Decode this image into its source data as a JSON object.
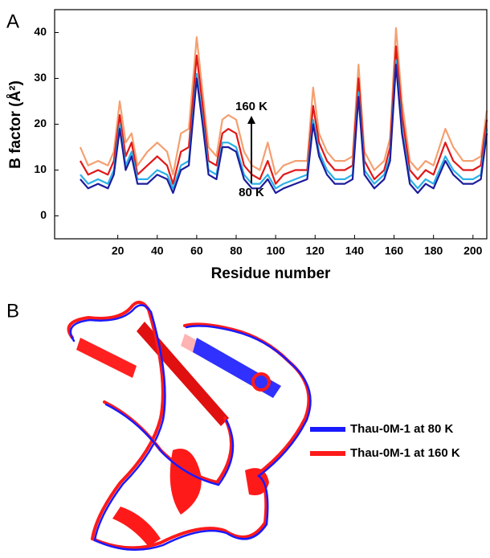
{
  "panel_a_label": "A",
  "panel_b_label": "B",
  "chart_data": {
    "type": "line",
    "ylabel": "B factor (Å²)",
    "xlabel": "Residue number",
    "annotations": [
      "160 K",
      "80 K"
    ],
    "x": [
      1,
      5,
      10,
      15,
      18,
      21,
      24,
      27,
      30,
      35,
      40,
      45,
      48,
      52,
      56,
      60,
      63,
      66,
      70,
      73,
      76,
      80,
      84,
      88,
      92,
      96,
      100,
      104,
      110,
      116,
      119,
      122,
      126,
      130,
      135,
      139,
      142,
      145,
      150,
      155,
      158,
      161,
      164,
      168,
      172,
      176,
      180,
      186,
      190,
      195,
      200,
      204,
      207
    ],
    "series": [
      {
        "color": "#f4a070",
        "values": [
          15,
          11,
          12,
          11,
          14,
          25,
          16,
          18,
          11,
          14,
          16,
          14,
          9,
          18,
          19,
          39,
          27,
          15,
          13,
          21,
          22,
          21,
          14,
          11,
          10,
          16,
          9,
          11,
          12,
          12,
          28,
          18,
          14,
          12,
          12,
          13,
          33,
          14,
          10,
          12,
          17,
          41,
          25,
          12,
          10,
          12,
          11,
          19,
          15,
          12,
          12,
          13,
          23
        ]
      },
      {
        "color": "#e01818",
        "values": [
          12,
          9,
          10,
          9,
          12,
          22,
          13,
          16,
          9,
          11,
          13,
          11,
          7,
          14,
          15,
          35,
          24,
          12,
          11,
          18,
          19,
          18,
          11,
          9,
          8,
          12,
          7,
          9,
          10,
          10,
          24,
          16,
          12,
          10,
          10,
          11,
          30,
          12,
          8,
          10,
          15,
          37,
          22,
          10,
          8,
          10,
          9,
          16,
          12,
          10,
          10,
          11,
          21
        ]
      },
      {
        "color": "#2ab0e8",
        "values": [
          9,
          7,
          8,
          7,
          10,
          20,
          11,
          14,
          8,
          8,
          10,
          9,
          6,
          11,
          12,
          31,
          21,
          10,
          9,
          16,
          16,
          15,
          9,
          7,
          7,
          9,
          6,
          7,
          8,
          9,
          21,
          14,
          10,
          8,
          8,
          9,
          27,
          10,
          7,
          9,
          13,
          34,
          19,
          8,
          6,
          8,
          7,
          13,
          10,
          8,
          8,
          9,
          19
        ]
      },
      {
        "color": "#1c1c9c",
        "values": [
          8,
          6,
          7,
          6,
          9,
          19,
          10,
          13,
          7,
          7,
          9,
          8,
          5,
          10,
          11,
          30,
          20,
          9,
          8,
          15,
          15,
          14,
          8,
          6,
          6,
          8,
          5,
          6,
          7,
          8,
          20,
          13,
          9,
          7,
          7,
          8,
          26,
          9,
          6,
          8,
          12,
          33,
          18,
          7,
          5,
          7,
          6,
          12,
          9,
          7,
          7,
          8,
          18
        ]
      }
    ],
    "xlim": [
      -12,
      207
    ],
    "xticks": [
      20,
      40,
      60,
      80,
      100,
      120,
      140,
      160,
      180,
      200
    ],
    "ylim": [
      -5,
      45
    ],
    "yticks": [
      0,
      10,
      20,
      30,
      40
    ]
  },
  "structure_legend": [
    {
      "name": "Thau-0M-1 at 80 K",
      "color": "#1a1aff"
    },
    {
      "name": "Thau-0M-1 at 160 K",
      "color": "#ff1a1a"
    }
  ]
}
